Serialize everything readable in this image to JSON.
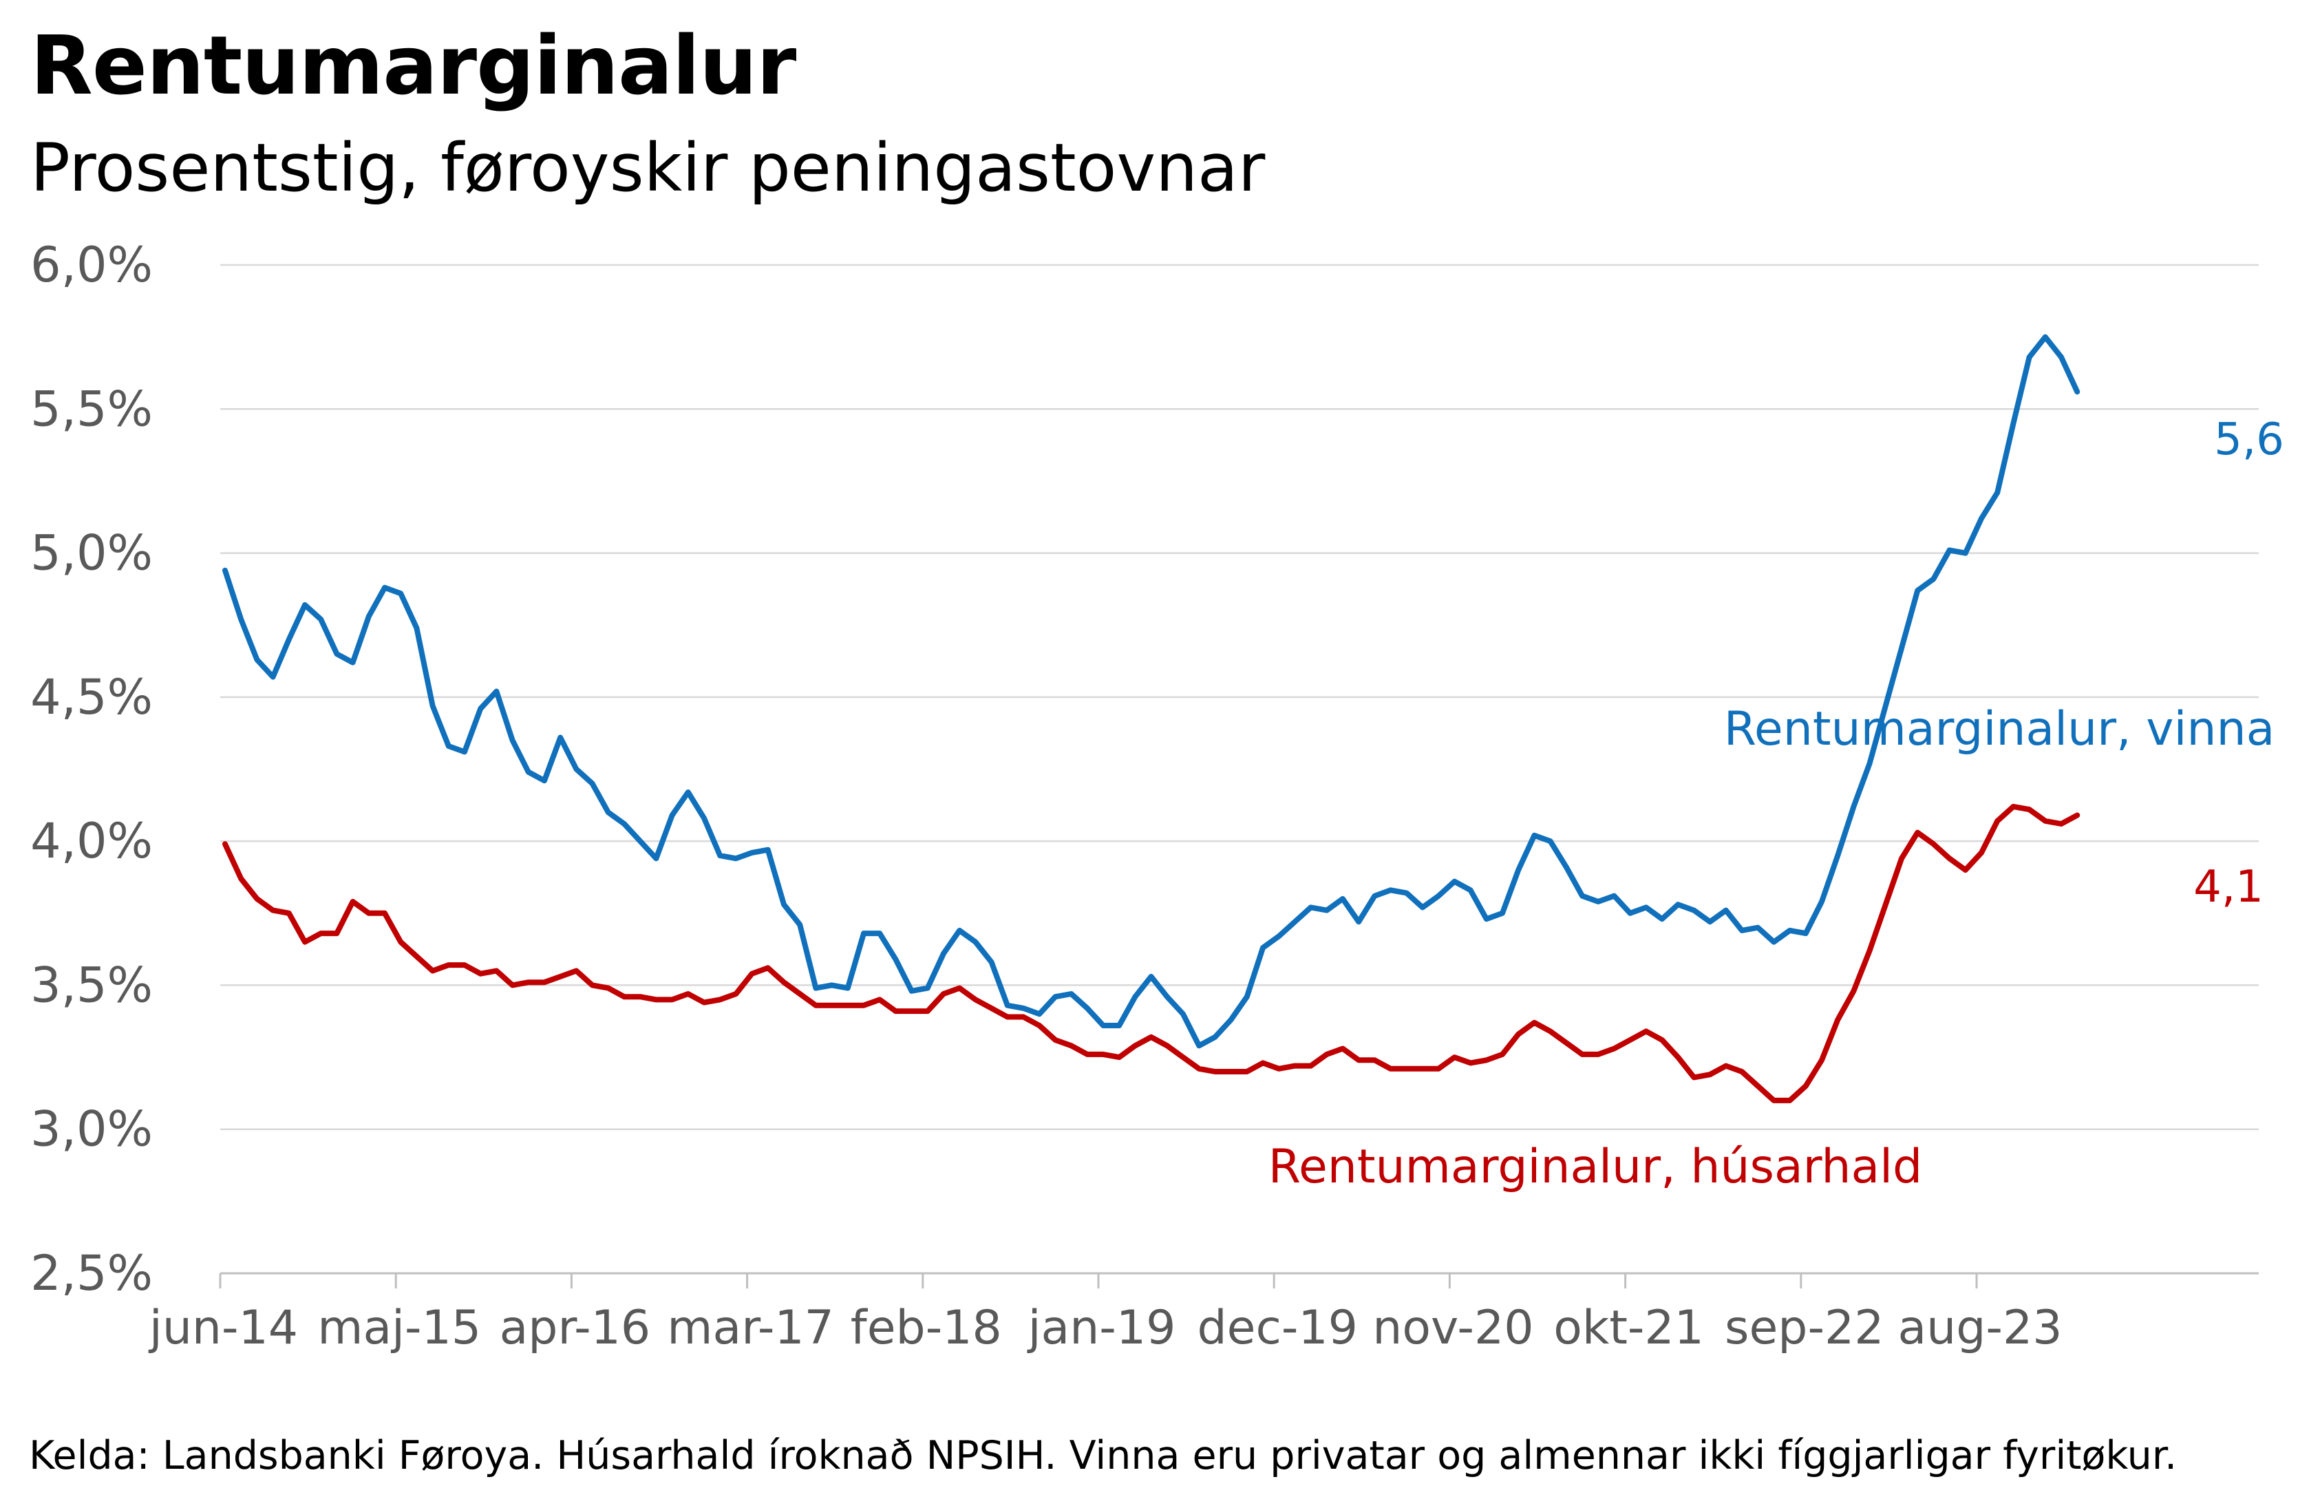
{
  "title": "Rentumarginalur",
  "subtitle": "Prosentstig, føroyskir peningastovnar",
  "source": "Kelda: Landsbanki Føroya. Húsarhald íroknað NPSIH. Vinna eru privatar og almennar ikki fíggjarligar fyritøkur.",
  "colors": {
    "vinna": "#1170bb",
    "husarhald": "#c00000",
    "grid": "#d9d9d9",
    "axis": "#bfbfbf",
    "tick_text": "#595959"
  },
  "chart_data": {
    "type": "line",
    "title": "Rentumarginalur",
    "subtitle": "Prosentstig, føroyskir peningastovnar",
    "xlabel": "",
    "ylabel": "",
    "ylim": [
      2.5,
      6.0
    ],
    "yticks": [
      "2,5%",
      "3,0%",
      "3,5%",
      "4,0%",
      "4,5%",
      "5,0%",
      "5,5%",
      "6,0%"
    ],
    "ytick_values": [
      2.5,
      3.0,
      3.5,
      4.0,
      4.5,
      5.0,
      5.5,
      6.0
    ],
    "xticks": [
      "jun-14",
      "maj-15",
      "apr-16",
      "mar-17",
      "feb-18",
      "jan-19",
      "dec-19",
      "nov-20",
      "okt-21",
      "sep-22",
      "aug-23"
    ],
    "xtick_month_index": [
      0,
      11,
      22,
      33,
      44,
      55,
      66,
      77,
      88,
      99,
      110
    ],
    "x_start": "jun-14",
    "x_end": "jul-24",
    "grid": true,
    "legend": "inline labels",
    "series": [
      {
        "name": "Rentumarginalur, vinna",
        "color": "#1170bb",
        "end_label": "5,6",
        "values": [
          4.94,
          4.77,
          4.63,
          4.57,
          4.7,
          4.82,
          4.77,
          4.65,
          4.62,
          4.78,
          4.88,
          4.86,
          4.74,
          4.47,
          4.33,
          4.31,
          4.46,
          4.52,
          4.35,
          4.24,
          4.21,
          4.36,
          4.25,
          4.2,
          4.1,
          4.06,
          4.0,
          3.94,
          4.09,
          4.17,
          4.08,
          3.95,
          3.94,
          3.96,
          3.97,
          3.78,
          3.71,
          3.49,
          3.5,
          3.49,
          3.68,
          3.68,
          3.59,
          3.48,
          3.49,
          3.61,
          3.69,
          3.65,
          3.58,
          3.43,
          3.42,
          3.4,
          3.46,
          3.47,
          3.42,
          3.36,
          3.36,
          3.46,
          3.53,
          3.46,
          3.4,
          3.29,
          3.32,
          3.38,
          3.46,
          3.63,
          3.67,
          3.72,
          3.77,
          3.76,
          3.8,
          3.72,
          3.81,
          3.83,
          3.82,
          3.77,
          3.81,
          3.86,
          3.83,
          3.73,
          3.75,
          3.9,
          4.02,
          4.0,
          3.91,
          3.81,
          3.79,
          3.81,
          3.75,
          3.77,
          3.73,
          3.78,
          3.76,
          3.72,
          3.76,
          3.69,
          3.7,
          3.65,
          3.69,
          3.68,
          3.79,
          3.95,
          4.12,
          4.27,
          4.47,
          4.67,
          4.87,
          4.91,
          5.01,
          5.0,
          5.12,
          5.21,
          5.45,
          5.68,
          5.75,
          5.68,
          5.56
        ]
      },
      {
        "name": "Rentumarginalur, húsarhald",
        "color": "#c00000",
        "end_label": "4,1",
        "values": [
          3.99,
          3.87,
          3.8,
          3.76,
          3.75,
          3.65,
          3.68,
          3.68,
          3.79,
          3.75,
          3.75,
          3.65,
          3.6,
          3.55,
          3.57,
          3.57,
          3.54,
          3.55,
          3.5,
          3.51,
          3.51,
          3.53,
          3.55,
          3.5,
          3.49,
          3.46,
          3.46,
          3.45,
          3.45,
          3.47,
          3.44,
          3.45,
          3.47,
          3.54,
          3.56,
          3.51,
          3.47,
          3.43,
          3.43,
          3.43,
          3.43,
          3.45,
          3.41,
          3.41,
          3.41,
          3.47,
          3.49,
          3.45,
          3.42,
          3.39,
          3.39,
          3.36,
          3.31,
          3.29,
          3.26,
          3.26,
          3.25,
          3.29,
          3.32,
          3.29,
          3.25,
          3.21,
          3.2,
          3.2,
          3.2,
          3.23,
          3.21,
          3.22,
          3.22,
          3.26,
          3.28,
          3.24,
          3.24,
          3.21,
          3.21,
          3.21,
          3.21,
          3.25,
          3.23,
          3.24,
          3.26,
          3.33,
          3.37,
          3.34,
          3.3,
          3.26,
          3.26,
          3.28,
          3.31,
          3.34,
          3.31,
          3.25,
          3.18,
          3.19,
          3.22,
          3.2,
          3.15,
          3.1,
          3.1,
          3.15,
          3.24,
          3.38,
          3.48,
          3.62,
          3.78,
          3.94,
          4.03,
          3.99,
          3.94,
          3.9,
          3.96,
          4.07,
          4.12,
          4.11,
          4.07,
          4.06,
          4.09
        ]
      }
    ],
    "annotations": [
      {
        "text": "Rentumarginalur, vinna",
        "series": 0
      },
      {
        "text": "Rentumarginalur, húsarhald",
        "series": 1
      }
    ]
  }
}
